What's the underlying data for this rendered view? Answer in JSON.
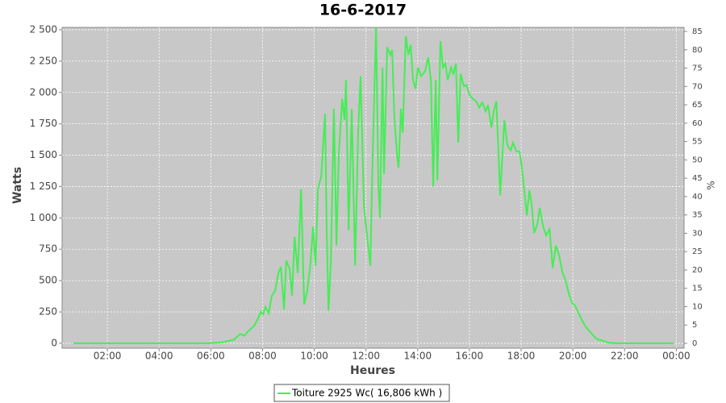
{
  "chart_data": {
    "type": "line",
    "title": "16-6-2017",
    "x_label": "Heures",
    "y_label": "Watts",
    "y2_label": "%",
    "xlim": [
      0.25,
      24.3
    ],
    "xticks": [
      {
        "value": 2,
        "label": "02:00"
      },
      {
        "value": 4,
        "label": "04:00"
      },
      {
        "value": 6,
        "label": "06:00"
      },
      {
        "value": 8,
        "label": "08:00"
      },
      {
        "value": 10,
        "label": "10:00"
      },
      {
        "value": 12,
        "label": "12:00"
      },
      {
        "value": 14,
        "label": "14:00"
      },
      {
        "value": 16,
        "label": "16:00"
      },
      {
        "value": 18,
        "label": "18:00"
      },
      {
        "value": 20,
        "label": "20:00"
      },
      {
        "value": 22,
        "label": "22:00"
      },
      {
        "value": 24,
        "label": "00:00"
      }
    ],
    "ylim": [
      -39,
      2519
    ],
    "yticks": [
      0,
      250,
      500,
      750,
      {
        "value": 1000,
        "label": "1 000"
      },
      {
        "value": 1250,
        "label": "1 250"
      },
      {
        "value": 1500,
        "label": "1 500"
      },
      {
        "value": 1750,
        "label": "1 750"
      },
      {
        "value": 2000,
        "label": "2 000"
      },
      {
        "value": 2250,
        "label": "2 250"
      },
      {
        "value": 2500,
        "label": "2 500"
      }
    ],
    "y2lim": [
      -1.32,
      86.1
    ],
    "y2ticks": [
      0,
      5,
      10,
      15,
      20,
      25,
      30,
      35,
      40,
      45,
      50,
      55,
      60,
      65,
      70,
      75,
      80,
      85
    ],
    "grid": true,
    "series": [
      {
        "name": "Toiture 2925 Wc( 16,806 kWh )",
        "color": "#44ee55",
        "x": [
          0.67,
          3,
          5.9,
          6.2,
          6.49,
          6.9,
          7.14,
          7.3,
          7.46,
          7.68,
          7.83,
          7.93,
          8.02,
          8.11,
          8.24,
          8.36,
          8.49,
          8.61,
          8.71,
          8.83,
          8.92,
          9.05,
          9.14,
          9.24,
          9.36,
          9.49,
          9.61,
          9.73,
          9.86,
          9.95,
          10.05,
          10.14,
          10.27,
          10.42,
          10.48,
          10.55,
          10.64,
          10.76,
          10.86,
          10.95,
          11.08,
          11.17,
          11.23,
          11.33,
          11.45,
          11.58,
          11.7,
          11.79,
          11.92,
          12.01,
          12.17,
          12.26,
          12.39,
          12.48,
          12.54,
          12.64,
          12.7,
          12.82,
          12.95,
          13.01,
          13.1,
          13.2,
          13.26,
          13.35,
          13.42,
          13.54,
          13.64,
          13.73,
          13.82,
          13.92,
          14.01,
          14.13,
          14.29,
          14.41,
          14.51,
          14.6,
          14.7,
          14.76,
          14.88,
          14.98,
          15.07,
          15.16,
          15.29,
          15.38,
          15.48,
          15.57,
          15.66,
          15.79,
          15.88,
          16.01,
          16.13,
          16.26,
          16.38,
          16.5,
          16.63,
          16.72,
          16.85,
          16.94,
          17.04,
          17.13,
          17.19,
          17.25,
          17.35,
          17.47,
          17.6,
          17.69,
          17.82,
          17.94,
          18.03,
          18.13,
          18.22,
          18.32,
          18.41,
          18.5,
          18.63,
          18.72,
          18.85,
          18.97,
          19.1,
          19.22,
          19.34,
          19.47,
          19.59,
          19.72,
          19.84,
          19.97,
          20.09,
          20.22,
          20.34,
          20.47,
          20.59,
          20.72,
          20.84,
          20.97,
          21.09,
          21.22,
          21.4,
          21.72,
          23.9
        ],
        "values": [
          0,
          0,
          0,
          5,
          10,
          30,
          75,
          60,
          100,
          140,
          200,
          250,
          230,
          290,
          240,
          380,
          420,
          560,
          610,
          270,
          660,
          590,
          380,
          850,
          560,
          1230,
          310,
          420,
          650,
          930,
          620,
          1230,
          1330,
          1830,
          900,
          260,
          640,
          1870,
          780,
          1500,
          1950,
          1780,
          2100,
          900,
          1870,
          620,
          1700,
          2130,
          1100,
          920,
          620,
          1500,
          2520,
          1250,
          1000,
          2200,
          1350,
          2360,
          2300,
          2340,
          1800,
          1500,
          1400,
          1870,
          1680,
          2450,
          2300,
          2380,
          2100,
          2030,
          2200,
          2130,
          2170,
          2280,
          2100,
          1250,
          2100,
          1300,
          2410,
          2200,
          2230,
          2100,
          2200,
          2150,
          2230,
          1600,
          2150,
          2050,
          2060,
          1980,
          1950,
          1930,
          1880,
          1920,
          1850,
          1900,
          1720,
          1850,
          1930,
          1500,
          1180,
          1400,
          1780,
          1580,
          1540,
          1600,
          1530,
          1530,
          1400,
          1200,
          1020,
          1220,
          1100,
          880,
          950,
          1080,
          930,
          860,
          910,
          600,
          780,
          700,
          570,
          500,
          400,
          320,
          300,
          240,
          190,
          140,
          110,
          80,
          50,
          30,
          25,
          15,
          5,
          0,
          0
        ]
      }
    ]
  }
}
